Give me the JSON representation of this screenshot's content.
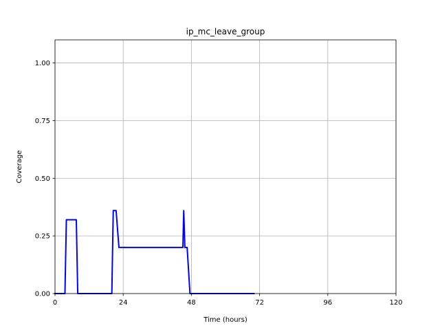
{
  "chart_data": {
    "type": "line",
    "title": "ip_mc_leave_group",
    "xlabel": "Time (hours)",
    "ylabel": "Coverage",
    "xlim": [
      0,
      120
    ],
    "ylim": [
      0,
      1.1
    ],
    "xticks": [
      0,
      24,
      48,
      72,
      96,
      120
    ],
    "xtick_labels": [
      "0",
      "24",
      "48",
      "72",
      "96",
      "120"
    ],
    "yticks": [
      0.0,
      0.25,
      0.5,
      0.75,
      1.0
    ],
    "ytick_labels": [
      "0.00",
      "0.25",
      "0.50",
      "0.75",
      "1.00"
    ],
    "grid": true,
    "series": [
      {
        "color": "#0000ff",
        "x": [
          0,
          3.5,
          4,
          7.5,
          8,
          20,
          20.5,
          21.5,
          22.5,
          45,
          45.3,
          45.7,
          46.5,
          47.5,
          70
        ],
        "y": [
          0,
          0,
          0.32,
          0.32,
          0,
          0,
          0.36,
          0.36,
          0.2,
          0.2,
          0.36,
          0.2,
          0.2,
          0,
          0
        ]
      }
    ]
  }
}
